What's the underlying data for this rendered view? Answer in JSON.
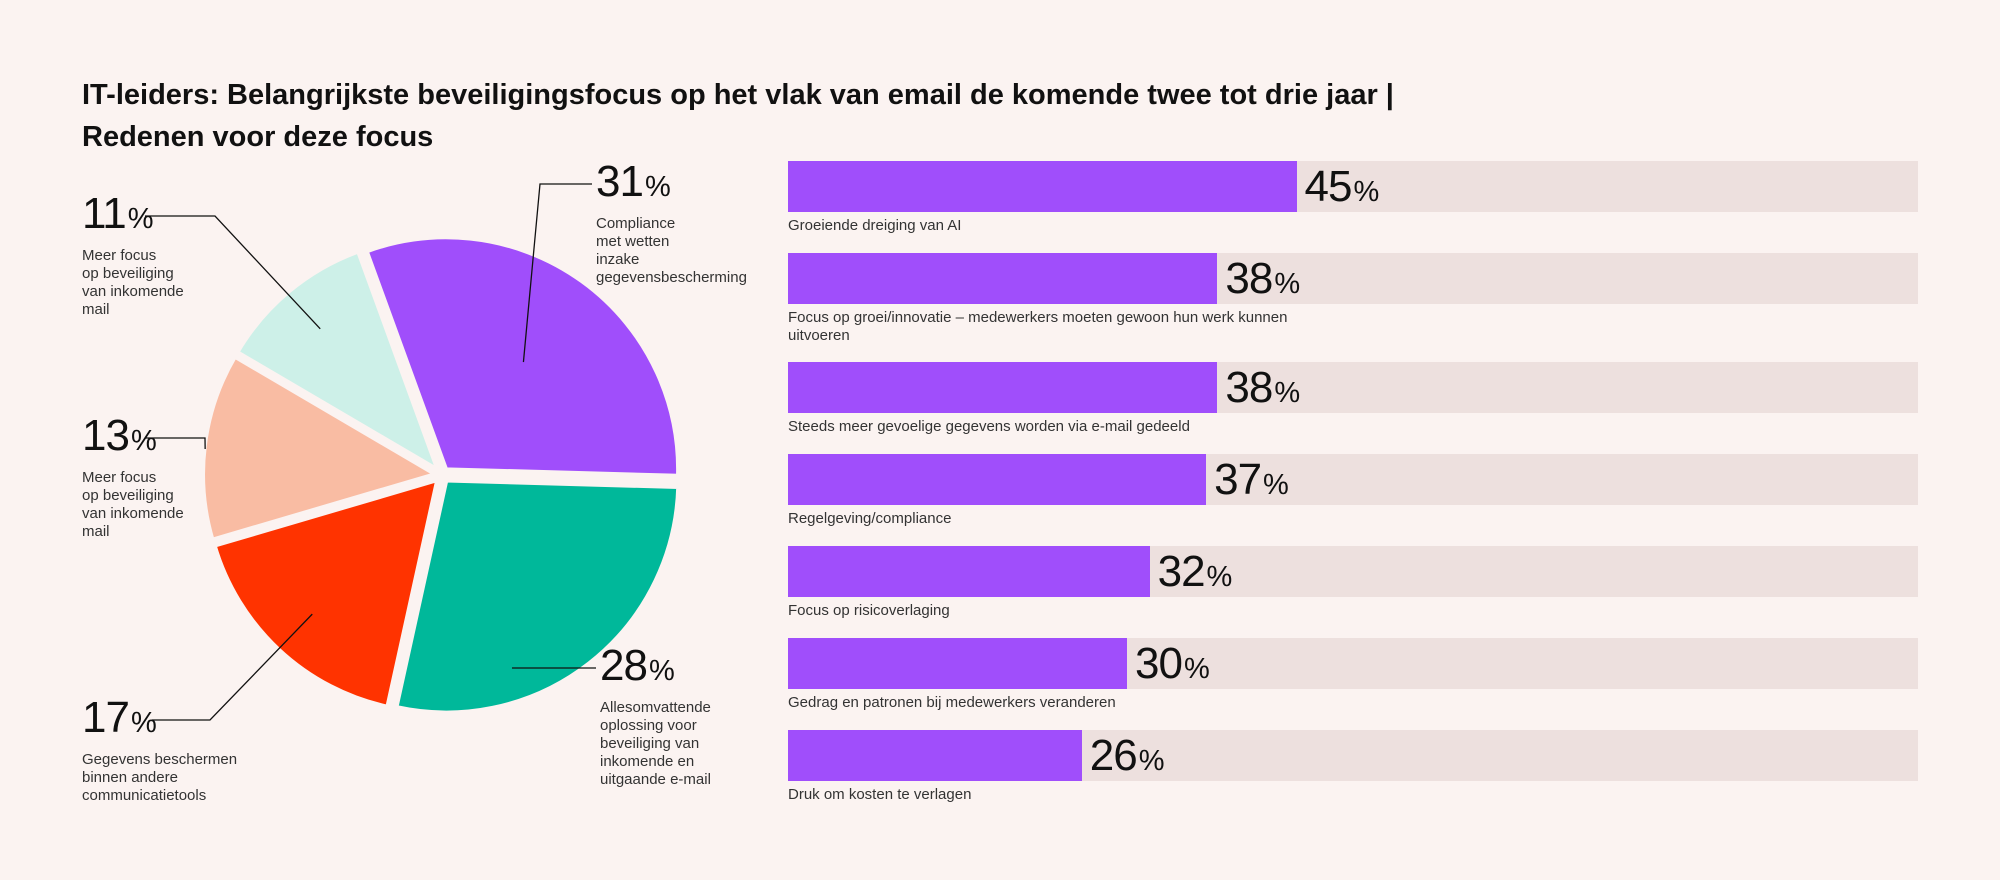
{
  "title_lines": [
    "IT-leiders: Belangrijkste beveiligingsfocus op het vlak van email de komende twee tot drie jaar |",
    "Redenen voor deze focus"
  ],
  "chart_data": [
    {
      "type": "pie",
      "unit": "%",
      "slices": [
        {
          "label": "Compliance met wetten inzake gegevensbescherming",
          "value": 31,
          "color": "#a04efb"
        },
        {
          "label": "Allesomvattende oplossing voor beveiliging van inkomende en uitgaande e-mail",
          "value": 28,
          "color": "#00b89a"
        },
        {
          "label": "Gegevens beschermen binnen andere communicatietools",
          "value": 17,
          "color": "#ff3300"
        },
        {
          "label": "Meer focus op beveiliging van inkomende mail",
          "value": 13,
          "color": "#f9bca3"
        },
        {
          "label": "Meer focus op beveiliging van inkomende mail",
          "value": 11,
          "color": "#cdf0e8"
        }
      ]
    },
    {
      "type": "bar",
      "orientation": "horizontal",
      "unit": "%",
      "xlim": [
        0,
        100
      ],
      "bar_color": "#a04efb",
      "track_color": "#ede0de",
      "categories": [
        "Groeiende dreiging van AI",
        "Focus op groei/innovatie – medewerkers moeten gewoon hun werk kunnen uitvoeren",
        "Steeds meer gevoelige gegevens worden via e-mail gedeeld",
        "Regelgeving/compliance",
        "Focus op risicoverlaging",
        "Gedrag en patronen bij medewerkers veranderen",
        "Druk om kosten te verlagen"
      ],
      "values": [
        45,
        38,
        38,
        37,
        32,
        30,
        26
      ]
    }
  ],
  "pie_label_lines": [
    "Compliance\nmet wetten\ninzake\ngegevensbescherming",
    "Allesomvattende\noplossing voor\nbeveiliging van\ninkomende en\nuitgaande e-mail",
    "Gegevens beschermen\nbinnen andere\ncommunicatietools",
    "Meer focus\nop beveiliging\nvan inkomende\nmail",
    "Meer focus\nop beveiliging\nvan inkomende\nmail"
  ],
  "percent_sign": "%"
}
